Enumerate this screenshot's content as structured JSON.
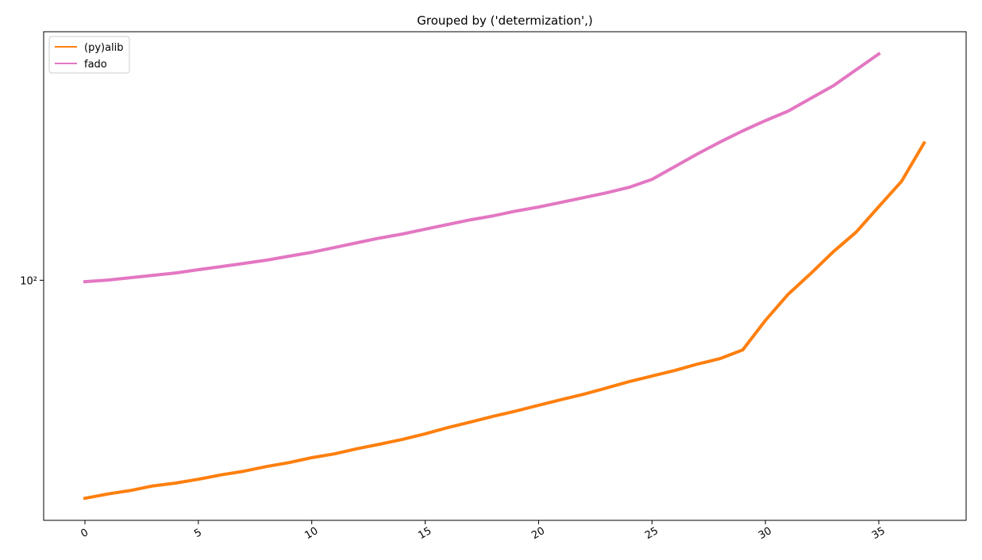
{
  "chart_data": {
    "type": "line",
    "title": "Grouped by ('determization',)",
    "x": [
      0,
      1,
      2,
      3,
      4,
      5,
      6,
      7,
      8,
      9,
      10,
      11,
      12,
      13,
      14,
      15,
      16,
      17,
      18,
      19,
      20,
      21,
      22,
      23,
      24,
      25,
      26,
      27,
      28,
      29,
      30,
      31,
      32,
      33,
      34,
      35,
      36,
      37
    ],
    "series": [
      {
        "name": "(py)alib",
        "color": "#ff7f0e",
        "values": [
          28.4,
          29.1,
          29.7,
          30.5,
          31.0,
          31.7,
          32.5,
          33.2,
          34.1,
          34.9,
          35.9,
          36.7,
          37.8,
          38.8,
          39.9,
          41.2,
          42.7,
          44.1,
          45.6,
          47.0,
          48.6,
          50.2,
          51.8,
          53.7,
          55.7,
          57.5,
          59.4,
          61.6,
          63.6,
          66.9,
          79.3,
          92.2,
          104,
          118,
          132,
          153,
          177,
          221
        ]
      },
      {
        "name": "fado",
        "color": "#e377c2",
        "values": [
          99.2,
          100.1,
          101.5,
          102.9,
          104.3,
          106.3,
          108.2,
          110.2,
          112.3,
          114.9,
          117.5,
          120.8,
          124.2,
          127.6,
          130.6,
          134.3,
          138.0,
          141.8,
          145.1,
          149.1,
          152.6,
          156.8,
          161.2,
          165.7,
          171.1,
          179.1,
          192.7,
          207.4,
          222.1,
          236.9,
          251.4,
          265.6,
          285.8,
          307.6,
          337.1,
          369.4,
          null,
          null
        ]
      }
    ],
    "xlim": [
      -1.82,
      38.85
    ],
    "xticks": [
      0,
      5,
      10,
      15,
      20,
      25,
      30,
      35
    ],
    "ylim": [
      25,
      420
    ],
    "yticks": [
      {
        "value": 100,
        "label": "10²"
      }
    ],
    "yscale": "log",
    "legend": "upper left"
  }
}
